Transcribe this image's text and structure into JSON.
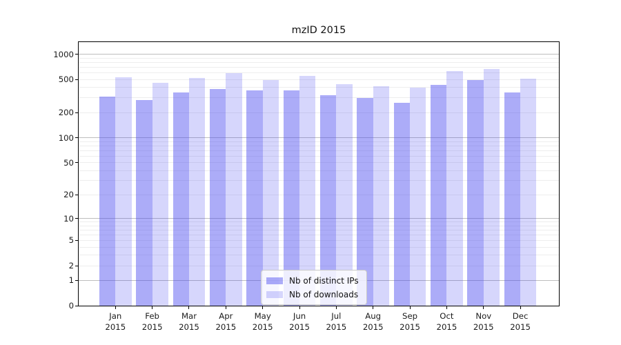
{
  "title": "mzID 2015",
  "chart_data": {
    "type": "bar",
    "title": "mzID 2015",
    "categories": [
      "Jan 2015",
      "Feb 2015",
      "Mar 2015",
      "Apr 2015",
      "May 2015",
      "Jun 2015",
      "Jul 2015",
      "Aug 2015",
      "Sep 2015",
      "Oct 2015",
      "Nov 2015",
      "Dec 2015"
    ],
    "series": [
      {
        "name": "Nb of distinct IPs",
        "color": "rgba(70,70,240,0.45)",
        "values": [
          314,
          282,
          352,
          382,
          370,
          370,
          324,
          300,
          261,
          431,
          495,
          352
        ]
      },
      {
        "name": "Nb of downloads",
        "color": "rgba(70,70,240,0.22)",
        "values": [
          531,
          456,
          518,
          591,
          492,
          546,
          440,
          415,
          401,
          634,
          662,
          506
        ]
      }
    ],
    "xlabel": "",
    "ylabel": "",
    "yscale": "symlog (position proportional to ln(1+value))",
    "yticks": [
      0,
      1,
      2,
      5,
      10,
      20,
      50,
      100,
      200,
      500,
      1000
    ],
    "ylim": [
      0,
      1390
    ],
    "grid": {
      "major_values": [
        1,
        10,
        100,
        1000
      ],
      "minor_multiples": [
        2,
        3,
        4,
        5,
        6,
        7,
        8,
        9
      ],
      "major_color": "#bdbdbd",
      "minor_color": "#ededed"
    },
    "legend_position": "lower center",
    "frame_color": "#000000"
  }
}
